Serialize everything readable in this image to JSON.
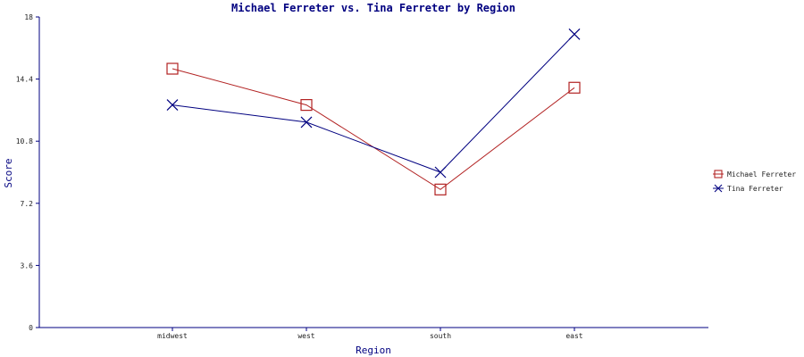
{
  "chart_data": {
    "type": "line",
    "title": "Michael Ferreter vs. Tina Ferreter by Region",
    "xlabel": "Region",
    "ylabel": "Score",
    "categories": [
      "midwest",
      "west",
      "south",
      "east"
    ],
    "y_ticks": [
      "0",
      "3.6",
      "7.2",
      "10.8",
      "14.4",
      "18"
    ],
    "ylim": [
      0,
      18
    ],
    "grid": false,
    "legend_position": "right",
    "series": [
      {
        "name": "Michael Ferreter",
        "values": [
          15.0,
          12.9,
          8.0,
          13.9
        ],
        "color": "#b22222",
        "marker": "square"
      },
      {
        "name": "Tina Ferreter",
        "values": [
          12.9,
          11.9,
          9.0,
          17.0
        ],
        "color": "#000080",
        "marker": "x"
      }
    ],
    "colors": {
      "title": "#000080",
      "axis": "#000080",
      "axis_title": "#000080"
    }
  }
}
